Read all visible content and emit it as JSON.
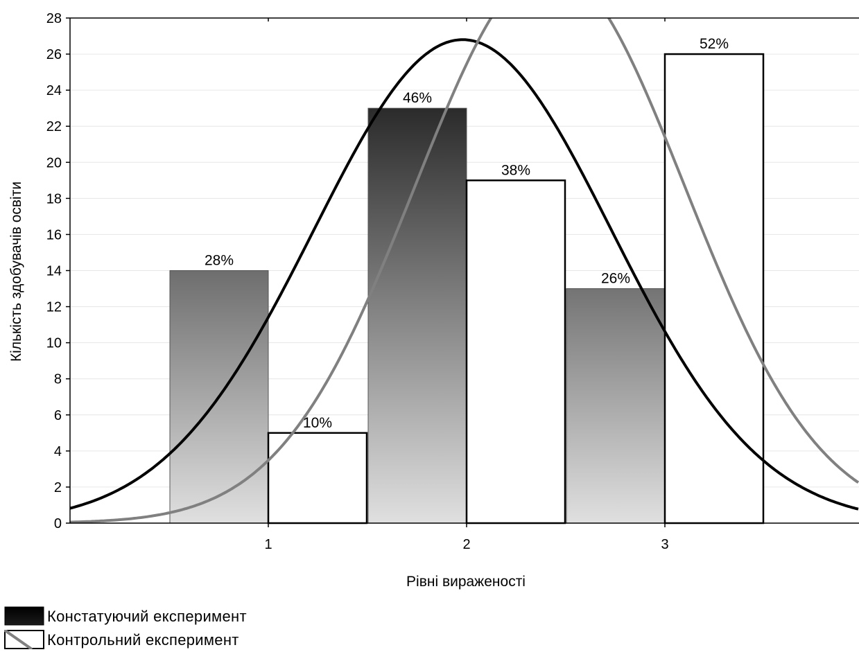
{
  "chart_data": {
    "type": "bar",
    "xlabel": "Рівні вираженості",
    "ylabel": "Кількість здобувачів освіти",
    "ylim": [
      0,
      28
    ],
    "yticks": [
      0,
      2,
      4,
      6,
      8,
      10,
      12,
      14,
      16,
      18,
      20,
      22,
      24,
      26,
      28
    ],
    "categories": [
      "1",
      "2",
      "3"
    ],
    "grid": true,
    "legend_position": "bottom-left",
    "series": [
      {
        "name": "Констатуючий експеримент",
        "values": [
          14,
          23,
          13
        ],
        "data_labels": [
          "28%",
          "46%",
          "26%"
        ],
        "style": "gradient-dark",
        "normal_curve": {
          "mean": 1.98,
          "sd": 0.75,
          "peak": 26.8,
          "color": "#000000"
        }
      },
      {
        "name": "Контрольний експеримент",
        "values": [
          5,
          19,
          26
        ],
        "data_labels": [
          "10%",
          "38%",
          "52%"
        ],
        "style": "white",
        "normal_curve": {
          "mean": 2.42,
          "sd": 0.68,
          "peak": 30.8,
          "color": "#808080"
        }
      }
    ],
    "colors": {
      "curve_1": "#000000",
      "curve_2": "#808080",
      "grid": "#e6e6e6",
      "bar_dark": "#2b2b2b",
      "bar_light": "#e0e0e0"
    }
  }
}
